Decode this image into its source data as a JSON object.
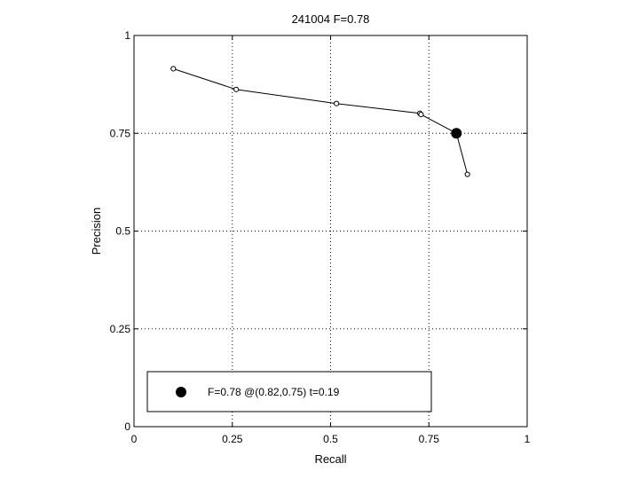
{
  "chart_data": {
    "type": "line",
    "title": "241004 F=0.78",
    "xlabel": "Recall",
    "ylabel": "Precision",
    "xlim": [
      0,
      1
    ],
    "ylim": [
      0,
      1
    ],
    "grid": true,
    "grid_style": "dotted",
    "xticks": [
      0,
      0.25,
      0.5,
      0.75,
      1
    ],
    "xtick_labels": [
      "0",
      "0.25",
      "0.5",
      "0.75",
      "1"
    ],
    "yticks": [
      0,
      0.25,
      0.5,
      0.75,
      1
    ],
    "ytick_labels": [
      "0",
      "0.25",
      "0.5",
      "0.75",
      "1"
    ],
    "series": [
      {
        "marker": "open-circle",
        "color": "#000000",
        "x": [
          0.1,
          0.26,
          0.515,
          0.727,
          0.73,
          0.82,
          0.848
        ],
        "y": [
          0.915,
          0.862,
          0.826,
          0.801,
          0.798,
          0.75,
          0.645
        ]
      }
    ],
    "highlight_point": {
      "x": 0.82,
      "y": 0.75,
      "marker": "filled-circle",
      "color": "#000000"
    },
    "legend": {
      "placement": "bottom-left",
      "entries": [
        {
          "label": "F=0.78 @(0.82,0.75) t=0.19",
          "marker": "filled-circle"
        }
      ]
    }
  }
}
